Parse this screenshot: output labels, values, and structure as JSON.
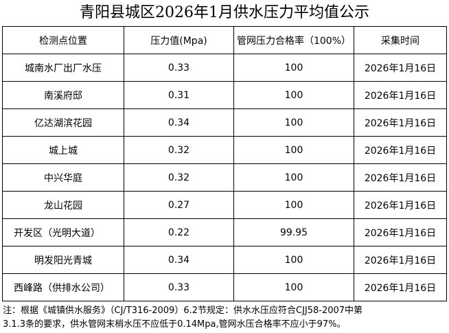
{
  "title": "青阳县城区2026年1月供水压力平均值公示",
  "table": {
    "header": [
      "检测点位置",
      "压力值(Mpa)",
      "管网压力合格率（100%）",
      "采集时间"
    ],
    "rows": [
      [
        "城南水厂出厂水压",
        "0.33",
        "100",
        "2026年1月16日"
      ],
      [
        "南溪府邸",
        "0.31",
        "100",
        "2026年1月16日"
      ],
      [
        "亿达湖滨花园",
        "0.34",
        "100",
        "2026年1月16日"
      ],
      [
        "城上城",
        "0.32",
        "100",
        "2026年1月16日"
      ],
      [
        "中兴华庭",
        "0.32",
        "100",
        "2026年1月16日"
      ],
      [
        "龙山花园",
        "0.27",
        "100",
        "2026年1月16日"
      ],
      [
        "开发区（光明大道）",
        "0.22",
        "99.95",
        "2026年1月16日"
      ],
      [
        "明发阳光青城",
        "0.34",
        "100",
        "2026年1月16日"
      ],
      [
        "西峰路（供排水公司）",
        "0.33",
        "100",
        "2026年1月16日"
      ]
    ]
  },
  "note": {
    "lines": [
      "注：根据《城镇供水服务》（CJ/T316-2009）6.2节规定：供水水压应符合CJJ58-2007中第",
      "3.1.3条的要求，供水管网末梢水压不应低于0.14Mpa,管网水压合格率不应小于97%。"
    ]
  }
}
